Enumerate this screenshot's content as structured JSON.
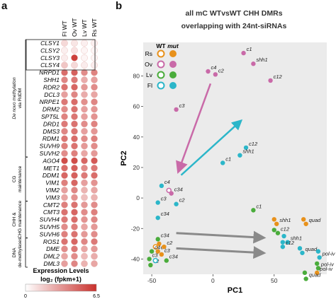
{
  "panels": {
    "a": {
      "letter": "a"
    },
    "b": {
      "letter": "b"
    }
  },
  "heatmap": {
    "columns": [
      "Fl WT",
      "Ov WT",
      "Lv WT",
      "Rs WT"
    ],
    "genes": [
      "CLSY1",
      "CLSY2",
      "CLSY3",
      "CLSY4",
      "NRPD1",
      "SHH1",
      "RDR2",
      "DCL3",
      "NRPE1",
      "DRM2",
      "SPT5L",
      "DRD1",
      "DMS3",
      "RDM1",
      "SUVH9",
      "SUVH2",
      "AGO4",
      "MET1",
      "DDM1",
      "VIM1",
      "VIM2",
      "VIM3",
      "CMT2",
      "CMT3",
      "SUVH4",
      "SUVH5",
      "SUVH6",
      "ROS1",
      "DME",
      "DML2",
      "DML3"
    ],
    "values": [
      [
        1.2,
        0.8,
        0.5,
        0.5
      ],
      [
        0.5,
        0.9,
        0.3,
        0.3
      ],
      [
        0.6,
        6.0,
        0.3,
        0.3
      ],
      [
        1.8,
        1.2,
        0.6,
        0.6
      ],
      [
        4.6,
        5.0,
        3.6,
        3.9
      ],
      [
        3.8,
        4.2,
        2.6,
        3.0
      ],
      [
        4.4,
        4.8,
        3.2,
        3.6
      ],
      [
        3.0,
        3.8,
        2.6,
        2.8
      ],
      [
        4.2,
        4.6,
        3.5,
        3.8
      ],
      [
        3.6,
        4.4,
        3.0,
        3.3
      ],
      [
        3.9,
        4.3,
        3.0,
        3.4
      ],
      [
        4.2,
        4.4,
        3.6,
        3.9
      ],
      [
        3.8,
        4.3,
        3.0,
        3.3
      ],
      [
        4.3,
        4.6,
        3.6,
        4.0
      ],
      [
        4.0,
        4.4,
        3.2,
        3.6
      ],
      [
        3.6,
        4.0,
        2.8,
        3.2
      ],
      [
        5.6,
        5.6,
        4.8,
        5.2
      ],
      [
        4.6,
        5.0,
        3.6,
        4.2
      ],
      [
        4.8,
        5.0,
        4.2,
        4.6
      ],
      [
        4.0,
        4.8,
        3.0,
        3.4
      ],
      [
        3.0,
        3.8,
        2.4,
        2.8
      ],
      [
        2.8,
        3.4,
        2.0,
        2.4
      ],
      [
        4.0,
        4.4,
        3.2,
        3.6
      ],
      [
        4.4,
        4.8,
        3.6,
        4.0
      ],
      [
        4.2,
        4.6,
        3.4,
        3.8
      ],
      [
        3.6,
        4.0,
        2.8,
        3.2
      ],
      [
        4.0,
        4.4,
        3.2,
        3.6
      ],
      [
        4.4,
        4.8,
        3.8,
        4.2
      ],
      [
        3.6,
        4.2,
        2.8,
        3.2
      ],
      [
        2.8,
        3.6,
        2.2,
        2.6
      ],
      [
        3.0,
        3.8,
        2.4,
        2.8
      ]
    ],
    "groups": [
      {
        "label": "De novo methylation via RdDM",
        "first": 0,
        "last": 15
      },
      {
        "label": "CG maintenance",
        "first": 16,
        "last": 21
      },
      {
        "label": "CHH & CHG maintenance",
        "first": 22,
        "last": 26
      },
      {
        "label": "DNA de-methylases",
        "first": 27,
        "last": 30
      }
    ],
    "legend": {
      "title": "Expression Levels",
      "subtitle": "log₂ (fpkm+1)",
      "min_label": "0",
      "max_label": "6.5",
      "min": 0,
      "max": 6.5,
      "color_low": "#ffffff",
      "color_high": "#c9302c"
    }
  },
  "chart_data": {
    "type": "scatter",
    "title": "all mC WTvsWT CHH DMRs overlapping with 24nt-siRNAs",
    "xlabel": "PC1",
    "ylabel": "PC2",
    "xlim": [
      -57,
      93
    ],
    "ylim": [
      -50,
      102
    ],
    "xticks": [
      "-50",
      "0",
      "50"
    ],
    "yticks": [
      "80",
      "60",
      "40",
      "20",
      "0",
      "-20",
      "-40"
    ],
    "grid": false,
    "legend_position": "top-left",
    "legend_headers": {
      "wt": "WT",
      "mut": "mut"
    },
    "legend_items": [
      {
        "label": "Rs",
        "color": "#e8911b"
      },
      {
        "label": "Ov",
        "color": "#c96aa8"
      },
      {
        "label": "Lv",
        "color": "#4aac3b"
      },
      {
        "label": "Fl",
        "color": "#2bb6c9"
      }
    ],
    "points": [
      {
        "x": -4,
        "y": 83,
        "label": "c4",
        "tissue": "Ov",
        "wt": false
      },
      {
        "x": 2,
        "y": 81,
        "label": "c2",
        "tissue": "Ov",
        "wt": false
      },
      {
        "x": 25,
        "y": 95,
        "label": "c1",
        "tissue": "Ov",
        "wt": false
      },
      {
        "x": 33,
        "y": 88,
        "label": "shh1",
        "tissue": "Ov",
        "wt": false
      },
      {
        "x": 47,
        "y": 77,
        "label": "c12",
        "tissue": "Ov",
        "wt": false
      },
      {
        "x": -30,
        "y": 58,
        "label": "c3",
        "tissue": "Ov",
        "wt": false
      },
      {
        "x": -36,
        "y": 5,
        "label": "",
        "tissue": "Ov",
        "wt": true
      },
      {
        "x": -34,
        "y": 3,
        "label": "c34",
        "tissue": "Ov",
        "wt": false
      },
      {
        "x": 27,
        "y": 33,
        "label": "c12",
        "tissue": "Fl",
        "wt": false
      },
      {
        "x": 22,
        "y": 28,
        "label": "shh1",
        "tissue": "Fl",
        "wt": false
      },
      {
        "x": 8,
        "y": 23,
        "label": "c1",
        "tissue": "Fl",
        "wt": false
      },
      {
        "x": -42,
        "y": 8,
        "label": "c4",
        "tissue": "Fl",
        "wt": false
      },
      {
        "x": -45,
        "y": -3,
        "label": "c3",
        "tissue": "Fl",
        "wt": false
      },
      {
        "x": -30,
        "y": -4,
        "label": "c2",
        "tissue": "Fl",
        "wt": false
      },
      {
        "x": -45,
        "y": -13,
        "label": "c34",
        "tissue": "Fl",
        "wt": false
      },
      {
        "x": -45,
        "y": -27,
        "label": "c34",
        "tissue": "Lv",
        "wt": false
      },
      {
        "x": -44,
        "y": -30,
        "label": "",
        "tissue": "Rs",
        "wt": false
      },
      {
        "x": -47,
        "y": -32,
        "label": "",
        "tissue": "Rs",
        "wt": true
      },
      {
        "x": -45,
        "y": -35,
        "label": "c4",
        "tissue": "Rs",
        "wt": false
      },
      {
        "x": -42,
        "y": -37,
        "label": "c3",
        "tissue": "Rs",
        "wt": false
      },
      {
        "x": -40,
        "y": -32,
        "label": "c2",
        "tissue": "Rs",
        "wt": false
      },
      {
        "x": -50,
        "y": -35,
        "label": "c4",
        "tissue": "Lv",
        "wt": false
      },
      {
        "x": -52,
        "y": -40,
        "label": "c3",
        "tissue": "Lv",
        "wt": false
      },
      {
        "x": -51,
        "y": -44,
        "label": "c2",
        "tissue": "Lv",
        "wt": false
      },
      {
        "x": -47,
        "y": -41,
        "label": "",
        "tissue": "Fl",
        "wt": true
      },
      {
        "x": -38,
        "y": -41,
        "label": "c34",
        "tissue": "Lv",
        "wt": false
      },
      {
        "x": 33,
        "y": -8,
        "label": "c1",
        "tissue": "Lv",
        "wt": false
      },
      {
        "x": 50,
        "y": -14,
        "label": "",
        "tissue": "Rs",
        "wt": false
      },
      {
        "x": 52,
        "y": -17,
        "label": "shh1",
        "tissue": "Rs",
        "wt": false
      },
      {
        "x": 74,
        "y": -14,
        "label": "",
        "tissue": "Rs",
        "wt": false
      },
      {
        "x": 76,
        "y": -17,
        "label": "quad",
        "tissue": "Rs",
        "wt": false
      },
      {
        "x": 50,
        "y": -21,
        "label": "",
        "tissue": "Lv",
        "wt": false
      },
      {
        "x": 53,
        "y": -23,
        "label": "c12",
        "tissue": "Lv",
        "wt": false
      },
      {
        "x": 58,
        "y": -25,
        "label": "",
        "tissue": "Fl",
        "wt": false
      },
      {
        "x": 61,
        "y": -29,
        "label": "shh1",
        "tissue": "Fl",
        "wt": false
      },
      {
        "x": 57,
        "y": -29,
        "label": "",
        "tissue": "Fl",
        "wt": false
      },
      {
        "x": 57,
        "y": -32,
        "label": "c12",
        "tissue": "Fl",
        "wt": false
      },
      {
        "x": 71,
        "y": -33,
        "label": "",
        "tissue": "Fl",
        "wt": false
      },
      {
        "x": 73,
        "y": -36,
        "label": "quad",
        "tissue": "Fl",
        "wt": false
      },
      {
        "x": 86,
        "y": -35,
        "label": "",
        "tissue": "Fl",
        "wt": false
      },
      {
        "x": 87,
        "y": -39,
        "label": "pol-iv",
        "tissue": "Fl",
        "wt": false
      },
      {
        "x": 85,
        "y": -43,
        "label": "",
        "tissue": "Lv",
        "wt": false
      },
      {
        "x": 86,
        "y": -46,
        "label": "pol-iv",
        "tissue": "Lv",
        "wt": false
      },
      {
        "x": 85,
        "y": -49,
        "label": "pol-iv",
        "tissue": "Rs",
        "wt": false
      },
      {
        "x": 75,
        "y": -49,
        "label": "",
        "tissue": "Lv",
        "wt": false
      },
      {
        "x": 76,
        "y": -53,
        "label": "quad",
        "tissue": "Lv",
        "wt": false
      }
    ],
    "arrows": [
      {
        "from": [
          -2,
          75
        ],
        "to": [
          -28,
          18
        ],
        "color": "#c96aa8"
      },
      {
        "from": [
          -26,
          15
        ],
        "to": [
          22,
          50
        ],
        "color": "#2bb6c9"
      },
      {
        "from": [
          -30,
          -23
        ],
        "to": [
          40,
          -26
        ],
        "color": "#8a8a8a"
      },
      {
        "from": [
          -30,
          -33
        ],
        "to": [
          40,
          -36
        ],
        "color": "#8a8a8a"
      }
    ]
  }
}
